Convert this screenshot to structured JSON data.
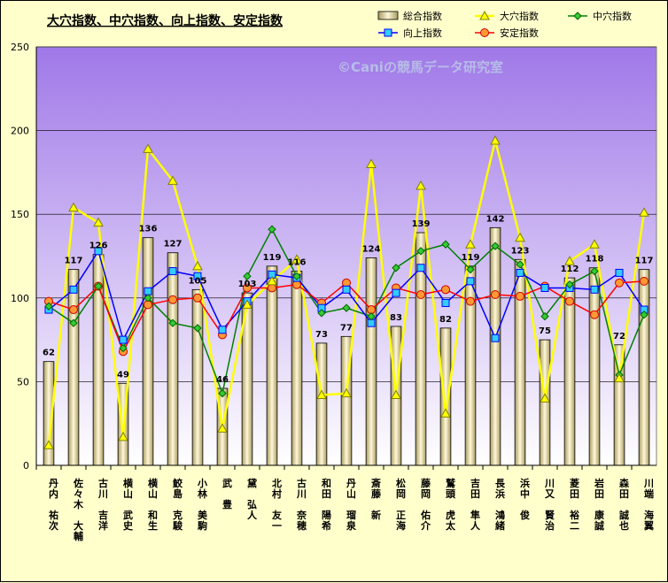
{
  "chart_data": {
    "type": "bar",
    "title": "大穴指数、中穴指数、向上指数、安定指数",
    "watermark": "©Caniの競馬データ研究室",
    "ylim": [
      0,
      250
    ],
    "yticks": [
      0,
      50,
      100,
      150,
      200,
      250
    ],
    "categories": [
      "丹内 祐次",
      "佐々木 大輔",
      "古川 吉洋",
      "横山 武史",
      "横山 和生",
      "鮫島 克駿",
      "小林 美駒",
      "武 豊",
      "黛 弘人",
      "北村 友一",
      "古川 奈穂",
      "和田 陽希",
      "丹山 瑠泉",
      "斎藤 新",
      "松岡 正海",
      "藤岡 佑介",
      "鷲頭 虎太",
      "吉田 隼人",
      "長浜 鴻緒",
      "浜中 俊",
      "川又 賢治",
      "菱田 裕二",
      "岩田 康誠",
      "森田 誠也",
      "川端 海翼"
    ],
    "series": [
      {
        "name": "総合指数",
        "kind": "bar",
        "color": "#e8dcb0",
        "values": [
          62,
          117,
          126,
          49,
          136,
          127,
          105,
          46,
          103,
          119,
          116,
          73,
          77,
          124,
          83,
          139,
          82,
          119,
          142,
          123,
          75,
          112,
          118,
          72,
          117
        ]
      },
      {
        "name": "大穴指数",
        "kind": "line",
        "color": "#ffff00",
        "marker": "triangle",
        "values": [
          12,
          154,
          145,
          17,
          189,
          170,
          119,
          22,
          96,
          110,
          123,
          42,
          43,
          180,
          42,
          167,
          31,
          132,
          194,
          136,
          40,
          122,
          132,
          52,
          151
        ]
      },
      {
        "name": "中穴指数",
        "kind": "line",
        "color": "#008000",
        "marker": "diamond",
        "values": [
          95,
          85,
          107,
          70,
          100,
          85,
          82,
          43,
          113,
          141,
          113,
          91,
          94,
          89,
          118,
          128,
          132,
          117,
          131,
          120,
          89,
          108,
          116,
          54,
          90
        ]
      },
      {
        "name": "向上指数",
        "kind": "line",
        "color": "#0000ff",
        "marker": "square",
        "values": [
          93,
          105,
          128,
          75,
          104,
          116,
          113,
          81,
          98,
          114,
          112,
          94,
          105,
          85,
          103,
          118,
          97,
          110,
          76,
          115,
          106,
          106,
          105,
          115,
          93
        ]
      },
      {
        "name": "安定指数",
        "kind": "line",
        "color": "#ff0000",
        "marker": "circle",
        "values": [
          98,
          93,
          107,
          68,
          96,
          99,
          100,
          78,
          106,
          106,
          108,
          97,
          109,
          93,
          106,
          102,
          105,
          98,
          102,
          101,
          107,
          98,
          90,
          109,
          110
        ]
      }
    ],
    "legend": "top-right"
  }
}
